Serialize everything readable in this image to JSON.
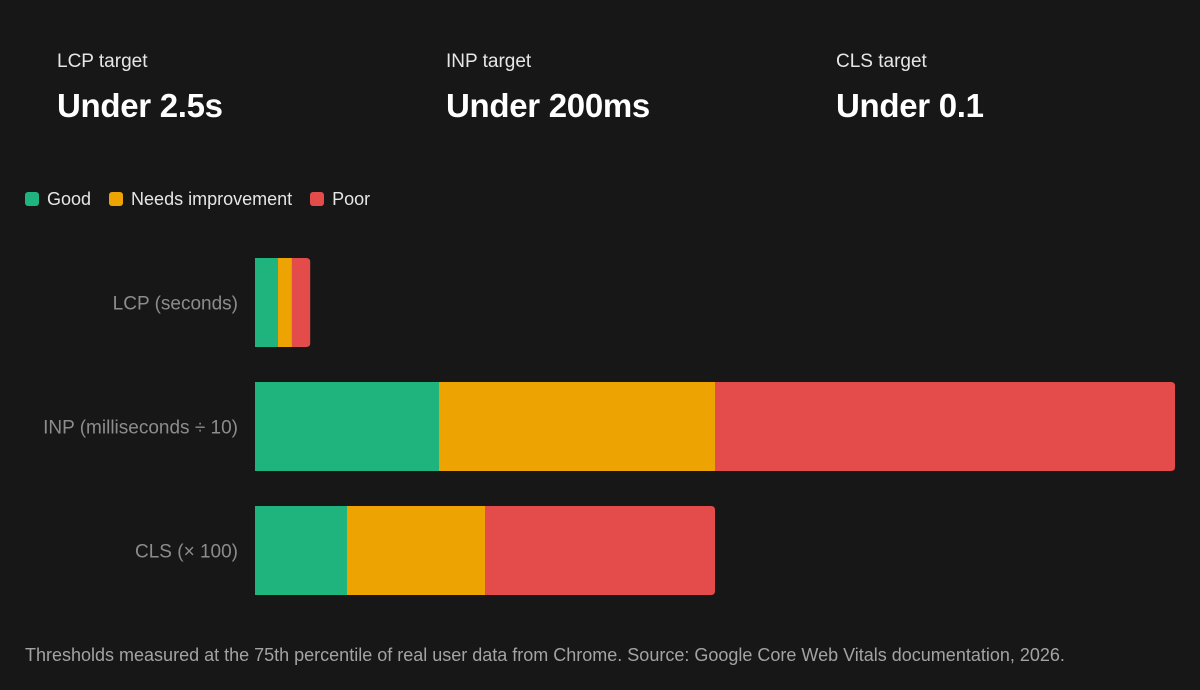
{
  "targets": [
    {
      "label": "LCP target",
      "value": "Under 2.5s"
    },
    {
      "label": "INP target",
      "value": "Under 200ms"
    },
    {
      "label": "CLS target",
      "value": "Under 0.1"
    }
  ],
  "colors": {
    "good": "#1fb37e",
    "needs": "#eda302",
    "poor": "#e44b4b",
    "category_label": "#8c8c8c"
  },
  "chart_data": {
    "type": "bar",
    "orientation": "horizontal",
    "stacked": true,
    "categories": [
      "LCP (seconds)",
      "INP (milliseconds ÷ 10)",
      "CLS (× 100)"
    ],
    "series": [
      {
        "name": "Good",
        "color": "#1fb37e",
        "values": [
          2.5,
          20,
          10
        ]
      },
      {
        "name": "Needs improvement",
        "color": "#eda302",
        "values": [
          1.5,
          30,
          15
        ]
      },
      {
        "name": "Poor",
        "color": "#e44b4b",
        "values": [
          2,
          50,
          25
        ]
      }
    ],
    "xlim": [
      0,
      100
    ],
    "grid": false,
    "legend": "top-left"
  },
  "footer": "Thresholds measured at the 75th percentile of real user data from Chrome. Source: Google Core Web Vitals documentation, 2026."
}
